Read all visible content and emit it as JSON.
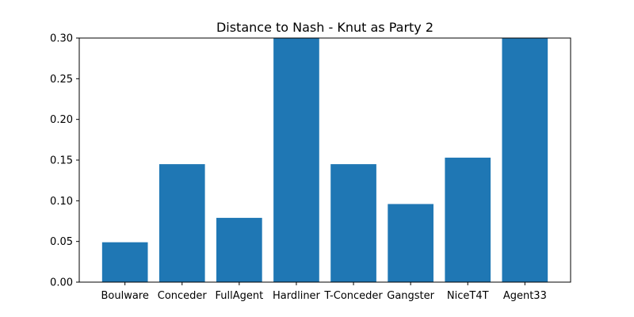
{
  "chart_data": {
    "type": "bar",
    "title": "Distance to Nash - Knut as Party 2",
    "xlabel": "",
    "ylabel": "",
    "categories": [
      "Boulware",
      "Conceder",
      "FullAgent",
      "Hardliner",
      "T-Conceder",
      "Gangster",
      "NiceT4T",
      "Agent33"
    ],
    "values": [
      0.049,
      0.145,
      0.079,
      0.3,
      0.145,
      0.096,
      0.153,
      0.3
    ],
    "ylim": [
      0,
      0.3
    ],
    "yticks": [
      "0.00",
      "0.05",
      "0.10",
      "0.15",
      "0.20",
      "0.25",
      "0.30"
    ],
    "bar_color": "#1f77b4",
    "grid": false,
    "legend": false
  }
}
